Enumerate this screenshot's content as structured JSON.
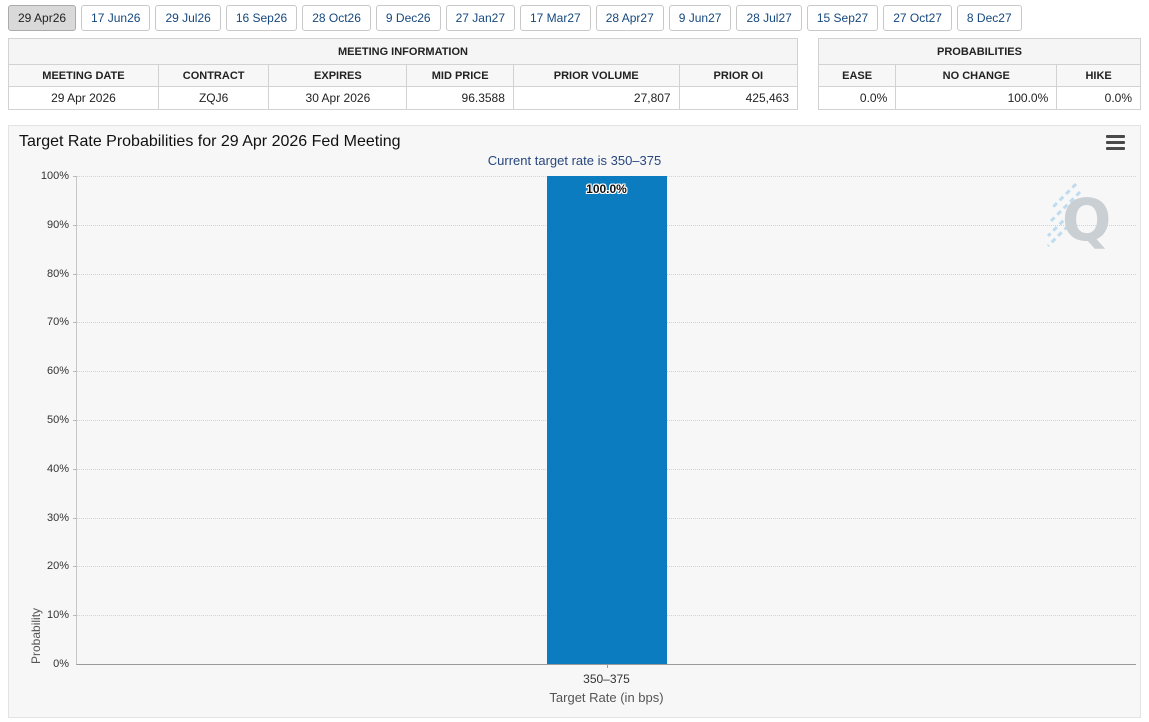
{
  "tabs": {
    "items": [
      {
        "label": "29 Apr26",
        "active": true
      },
      {
        "label": "17 Jun26",
        "active": false
      },
      {
        "label": "29 Jul26",
        "active": false
      },
      {
        "label": "16 Sep26",
        "active": false
      },
      {
        "label": "28 Oct26",
        "active": false
      },
      {
        "label": "9 Dec26",
        "active": false
      },
      {
        "label": "27 Jan27",
        "active": false
      },
      {
        "label": "17 Mar27",
        "active": false
      },
      {
        "label": "28 Apr27",
        "active": false
      },
      {
        "label": "9 Jun27",
        "active": false
      },
      {
        "label": "28 Jul27",
        "active": false
      },
      {
        "label": "15 Sep27",
        "active": false
      },
      {
        "label": "27 Oct27",
        "active": false
      },
      {
        "label": "8 Dec27",
        "active": false
      }
    ]
  },
  "meeting_info": {
    "title": "MEETING INFORMATION",
    "columns": [
      "MEETING DATE",
      "CONTRACT",
      "EXPIRES",
      "MID PRICE",
      "PRIOR VOLUME",
      "PRIOR OI"
    ],
    "rows": [
      [
        "29 Apr 2026",
        "ZQJ6",
        "30 Apr 2026",
        "96.3588",
        "27,807",
        "425,463"
      ]
    ]
  },
  "probabilities": {
    "title": "PROBABILITIES",
    "columns": [
      "EASE",
      "NO CHANGE",
      "HIKE"
    ],
    "rows": [
      [
        "0.0%",
        "100.0%",
        "0.0%"
      ]
    ]
  },
  "chart": {
    "title": "Target Rate Probabilities for 29 Apr 2026 Fed Meeting",
    "subtitle": "Current target rate is 350–375",
    "menu_icon": "hamburger-menu-icon",
    "watermark_letter": "Q"
  },
  "chart_data": {
    "type": "bar",
    "title": "Target Rate Probabilities for 29 Apr 2026 Fed Meeting",
    "subtitle": "Current target rate is 350–375",
    "categories": [
      "350–375"
    ],
    "values": [
      100.0
    ],
    "value_labels": [
      "100.0%"
    ],
    "xlabel": "Target Rate (in bps)",
    "ylabel": "Probability",
    "ylim": [
      0,
      100
    ],
    "ytick_step": 10,
    "ytick_suffix": "%",
    "grid": "horizontal-dotted",
    "legend": "none",
    "bar_color": "#0a7cbf"
  },
  "colors": {
    "bar": "#0a7cbf",
    "subtitle_text": "#27477e",
    "tab_text": "#15487f",
    "chart_background": "#f7f7f7",
    "active_tab_background": "#d9d9d9"
  }
}
